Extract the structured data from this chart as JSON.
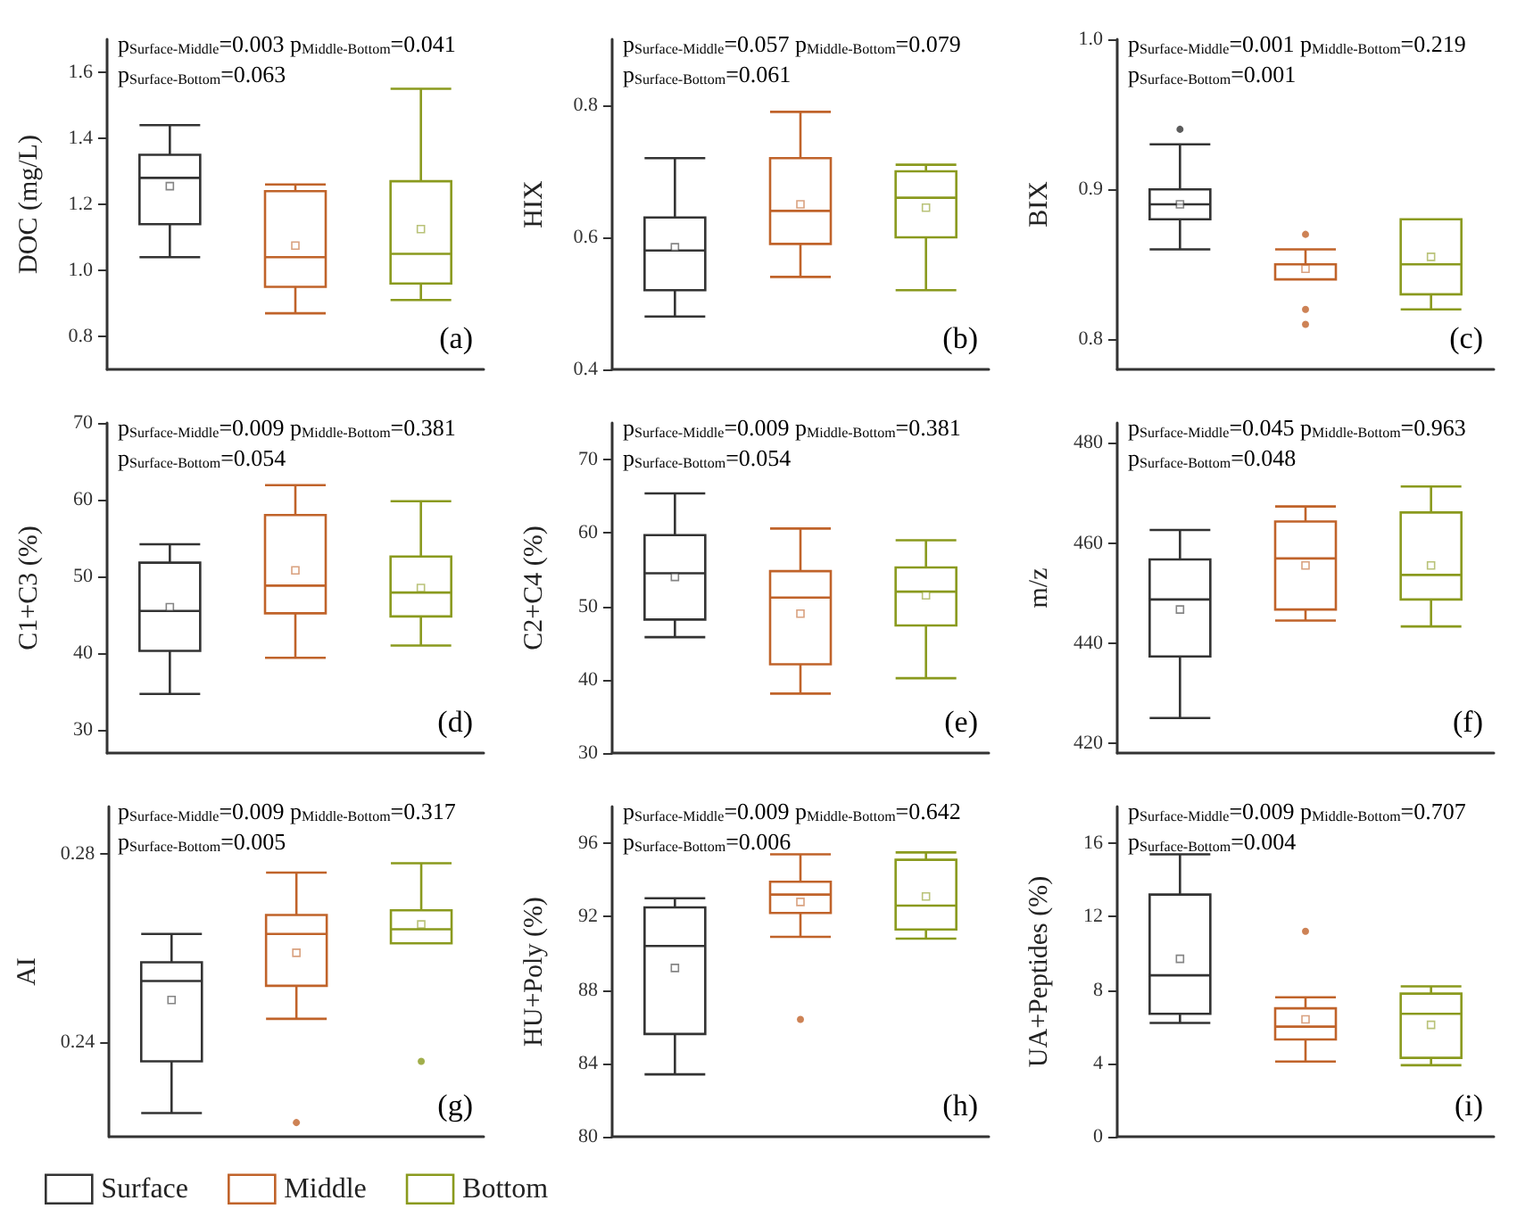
{
  "chart_data": [
    {
      "type": "box",
      "ylabel": "DOC (mg/L)",
      "categories": [
        null,
        null,
        null
      ],
      "ylim": [
        0.7,
        1.7
      ],
      "yticks": [
        0.8,
        {
          "value": 1,
          "label": "1.0"
        },
        1.2,
        1.4,
        1.6
      ],
      "annotations": [
        "p$_{Surface-Middle}$=0.003 p$_{Middle-Bottom}$=0.041",
        "p$_{Surface-Bottom}$=0.063",
        "(a)"
      ],
      "series": [
        {
          "color": "#333333",
          "boxes": [
            {
              "low": 1.04,
              "q1": 1.14,
              "median": 1.28,
              "q3": 1.35,
              "high": 1.44,
              "mean": 1.255
            },
            null,
            null
          ]
        },
        {
          "color": "#c0632a",
          "boxes": [
            null,
            {
              "low": 0.87,
              "q1": 0.95,
              "median": 1.04,
              "q3": 1.24,
              "high": 1.26,
              "mean": 1.075
            },
            null
          ]
        },
        {
          "color": "#8a9a1e",
          "boxes": [
            null,
            null,
            {
              "low": 0.91,
              "q1": 0.96,
              "median": 1.05,
              "q3": 1.27,
              "high": 1.55,
              "mean": 1.125
            }
          ]
        }
      ]
    },
    {
      "type": "box",
      "ylabel": "HIX",
      "categories": [
        null,
        null,
        null
      ],
      "ylim": [
        0.4,
        0.9
      ],
      "yticks": [
        0.4,
        0.6,
        0.8
      ],
      "annotations": [
        "p$_{Surface-Middle}$=0.057 p$_{Middle-Bottom}$=0.079",
        "p$_{Surface-Bottom}$=0.061",
        "(b)"
      ],
      "series": [
        {
          "color": "#333333",
          "boxes": [
            {
              "low": 0.48,
              "q1": 0.52,
              "median": 0.58,
              "q3": 0.63,
              "high": 0.72,
              "mean": 0.585
            },
            null,
            null
          ]
        },
        {
          "color": "#c0632a",
          "boxes": [
            null,
            {
              "low": 0.54,
              "q1": 0.59,
              "median": 0.64,
              "q3": 0.72,
              "high": 0.79,
              "mean": 0.65
            },
            null
          ]
        },
        {
          "color": "#8a9a1e",
          "boxes": [
            null,
            null,
            {
              "low": 0.52,
              "q1": 0.6,
              "median": 0.66,
              "q3": 0.7,
              "high": 0.71,
              "mean": 0.645
            }
          ]
        }
      ]
    },
    {
      "type": "box",
      "ylabel": "BIX",
      "categories": [
        null,
        null,
        null
      ],
      "ylim": [
        0.78,
        1.0
      ],
      "yticks": [
        0.8,
        0.9,
        {
          "value": 1,
          "label": "1.0"
        }
      ],
      "annotations": [
        "p$_{Surface-Middle}$=0.001 p$_{Middle-Bottom}$=0.219",
        "p$_{Surface-Bottom}$=0.001",
        "(c)"
      ],
      "series": [
        {
          "color": "#333333",
          "boxes": [
            {
              "low": 0.86,
              "q1": 0.88,
              "median": 0.89,
              "q3": 0.9,
              "high": 0.93,
              "mean": 0.89,
              "outliers": [
                0.94
              ]
            },
            null,
            null
          ]
        },
        {
          "color": "#c0632a",
          "boxes": [
            null,
            {
              "low": 0.84,
              "q1": 0.84,
              "median": 0.85,
              "q3": 0.85,
              "high": 0.86,
              "mean": 0.847,
              "outliers": [
                0.87,
                0.82,
                0.81
              ]
            },
            null
          ]
        },
        {
          "color": "#8a9a1e",
          "boxes": [
            null,
            null,
            {
              "low": 0.82,
              "q1": 0.83,
              "median": 0.85,
              "q3": 0.88,
              "high": 0.88,
              "mean": 0.855
            }
          ]
        }
      ]
    },
    {
      "type": "box",
      "ylabel": "C1+C3 (%)",
      "categories": [
        null,
        null,
        null
      ],
      "ylim": [
        27,
        70
      ],
      "yticks": [
        30,
        40,
        50,
        60,
        70
      ],
      "annotations": [
        "p$_{Surface-Middle}$=0.009 p$_{Middle-Bottom}$=0.381",
        "p$_{Surface-Bottom}$=0.054",
        "(d)"
      ],
      "series": [
        {
          "color": "#333333",
          "boxes": [
            {
              "low": 34.7,
              "q1": 40.3,
              "median": 45.5,
              "q3": 51.8,
              "high": 54.2,
              "mean": 46
            },
            null,
            null
          ]
        },
        {
          "color": "#c0632a",
          "boxes": [
            null,
            {
              "low": 39.4,
              "q1": 45.2,
              "median": 48.8,
              "q3": 58,
              "high": 61.9,
              "mean": 50.8
            },
            null
          ]
        },
        {
          "color": "#8a9a1e",
          "boxes": [
            null,
            null,
            {
              "low": 41,
              "q1": 44.8,
              "median": 47.9,
              "q3": 52.6,
              "high": 59.8,
              "mean": 48.5
            }
          ]
        }
      ]
    },
    {
      "type": "box",
      "ylabel": "C2+C4 (%)",
      "categories": [
        null,
        null,
        null
      ],
      "ylim": [
        30,
        75
      ],
      "yticks": [
        30,
        40,
        50,
        60,
        70
      ],
      "annotations": [
        "p$_{Surface-Middle}$=0.009 p$_{Middle-Bottom}$=0.381",
        "p$_{Surface-Bottom}$=0.054",
        "(e)"
      ],
      "series": [
        {
          "color": "#333333",
          "boxes": [
            {
              "low": 45.8,
              "q1": 48.2,
              "median": 54.5,
              "q3": 59.7,
              "high": 65.4,
              "mean": 54
            },
            null,
            null
          ]
        },
        {
          "color": "#c0632a",
          "boxes": [
            null,
            {
              "low": 38.1,
              "q1": 42.1,
              "median": 51.2,
              "q3": 54.8,
              "high": 60.6,
              "mean": 49
            },
            null
          ]
        },
        {
          "color": "#8a9a1e",
          "boxes": [
            null,
            null,
            {
              "low": 40.2,
              "q1": 47.4,
              "median": 52,
              "q3": 55.3,
              "high": 59,
              "mean": 51.5
            }
          ]
        }
      ]
    },
    {
      "type": "box",
      "ylabel": "m/z",
      "categories": [
        null,
        null,
        null
      ],
      "ylim": [
        418,
        484
      ],
      "yticks": [
        420,
        440,
        460,
        480
      ],
      "annotations": [
        "p$_{Surface-Middle}$=0.045 p$_{Middle-Bottom}$=0.963",
        "p$_{Surface-Bottom}$=0.048",
        "(f)"
      ],
      "series": [
        {
          "color": "#333333",
          "boxes": [
            {
              "low": 425,
              "q1": 437.3,
              "median": 448.7,
              "q3": 456.7,
              "high": 462.6,
              "mean": 446.7
            },
            null,
            null
          ]
        },
        {
          "color": "#c0632a",
          "boxes": [
            null,
            {
              "low": 444.5,
              "q1": 446.7,
              "median": 456.9,
              "q3": 464.3,
              "high": 467.3,
              "mean": 455.5
            },
            null
          ]
        },
        {
          "color": "#8a9a1e",
          "boxes": [
            null,
            null,
            {
              "low": 443.3,
              "q1": 448.7,
              "median": 453.6,
              "q3": 466.1,
              "high": 471.3,
              "mean": 455.5
            }
          ]
        }
      ]
    },
    {
      "type": "box",
      "ylabel": "AI",
      "categories": [
        null,
        null,
        null
      ],
      "ylim": [
        0.22,
        0.29
      ],
      "yticks": [
        0.24,
        0.28
      ],
      "legend": "bottom left",
      "annotations": [
        "p$_{Surface-Middle}$=0.009 p$_{Middle-Bottom}$=0.317",
        "p$_{Surface-Bottom}$=0.005",
        "(g)"
      ],
      "series": [
        {
          "name": "Surface",
          "color": "#333333",
          "boxes": [
            {
              "low": 0.225,
              "q1": 0.236,
              "median": 0.253,
              "q3": 0.257,
              "high": 0.263,
              "mean": 0.249
            },
            null,
            null
          ]
        },
        {
          "name": "Middle",
          "color": "#c0632a",
          "boxes": [
            null,
            {
              "low": 0.245,
              "q1": 0.252,
              "median": 0.263,
              "q3": 0.267,
              "high": 0.276,
              "mean": 0.259,
              "outliers": [
                0.223
              ]
            },
            null
          ]
        },
        {
          "name": "Bottom",
          "color": "#8a9a1e",
          "boxes": [
            null,
            null,
            {
              "low": 0.261,
              "q1": 0.261,
              "median": 0.264,
              "q3": 0.268,
              "high": 0.278,
              "mean": 0.265,
              "outliers": [
                0.236
              ]
            }
          ]
        }
      ]
    },
    {
      "type": "box",
      "ylabel": "HU+Poly (%)",
      "categories": [
        null,
        null,
        null
      ],
      "ylim": [
        80,
        98
      ],
      "yticks": [
        80,
        84,
        88,
        92,
        96
      ],
      "annotations": [
        "p$_{Surface-Middle}$=0.009 p$_{Middle-Bottom}$=0.642",
        "p$_{Surface-Bottom}$=0.006",
        "(h)"
      ],
      "series": [
        {
          "color": "#333333",
          "boxes": [
            {
              "low": 83.4,
              "q1": 85.6,
              "median": 90.4,
              "q3": 92.5,
              "high": 93,
              "mean": 89.2
            },
            null,
            null
          ]
        },
        {
          "color": "#c0632a",
          "boxes": [
            null,
            {
              "low": 90.9,
              "q1": 92.2,
              "median": 93.2,
              "q3": 93.9,
              "high": 95.4,
              "mean": 92.8,
              "outliers": [
                86.4
              ]
            },
            null
          ]
        },
        {
          "color": "#8a9a1e",
          "boxes": [
            null,
            null,
            {
              "low": 90.8,
              "q1": 91.3,
              "median": 92.6,
              "q3": 95.1,
              "high": 95.5,
              "mean": 93.1
            }
          ]
        }
      ]
    },
    {
      "type": "box",
      "ylabel": "UA+Peptides (%)",
      "categories": [
        null,
        null,
        null
      ],
      "ylim": [
        0,
        18
      ],
      "yticks": [
        0,
        4,
        8,
        12,
        16
      ],
      "annotations": [
        "p$_{Surface-Middle}$=0.009 p$_{Middle-Bottom}$=0.707",
        "p$_{Surface-Bottom}$=0.004",
        "(i)"
      ],
      "series": [
        {
          "color": "#333333",
          "boxes": [
            {
              "low": 6.2,
              "q1": 6.7,
              "median": 8.8,
              "q3": 13.2,
              "high": 15.4,
              "mean": 9.7
            },
            null,
            null
          ]
        },
        {
          "color": "#c0632a",
          "boxes": [
            null,
            {
              "low": 4.1,
              "q1": 5.3,
              "median": 6,
              "q3": 7,
              "high": 7.6,
              "mean": 6.4,
              "outliers": [
                11.2
              ]
            },
            null
          ]
        },
        {
          "color": "#8a9a1e",
          "boxes": [
            null,
            null,
            {
              "low": 3.9,
              "q1": 4.3,
              "median": 6.7,
              "q3": 7.8,
              "high": 8.2,
              "mean": 6.1
            }
          ]
        }
      ]
    }
  ]
}
